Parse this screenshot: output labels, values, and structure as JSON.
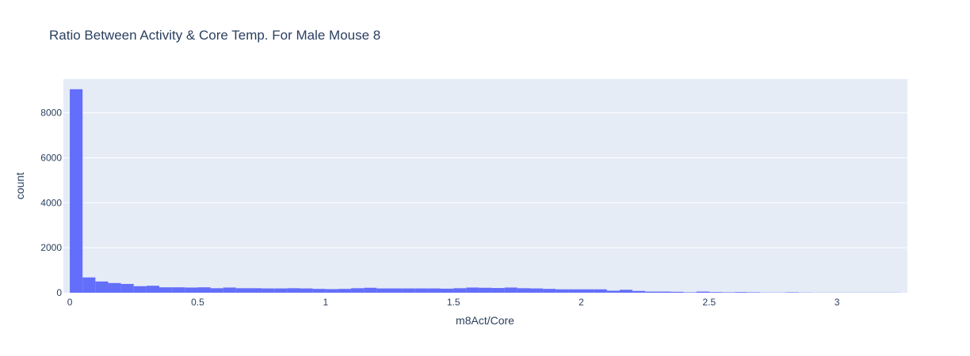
{
  "chart_data": {
    "type": "bar",
    "subtype": "histogram",
    "title": "Ratio Between Activity & Core Temp. For Male Mouse 8",
    "xlabel": "m8Act/Core",
    "ylabel": "count",
    "xlim": [
      -0.025,
      3.275
    ],
    "ylim": [
      0,
      9500
    ],
    "bin_width": 0.05,
    "x_ticks": [
      0,
      0.5,
      1,
      1.5,
      2,
      2.5,
      3
    ],
    "x_tick_labels": [
      "0",
      "0.5",
      "1",
      "1.5",
      "2",
      "2.5",
      "3"
    ],
    "y_ticks": [
      0,
      2000,
      4000,
      6000,
      8000
    ],
    "y_tick_labels": [
      "0",
      "2000",
      "4000",
      "6000",
      "8000"
    ],
    "grid": true,
    "colors": {
      "bar": "#636efa",
      "plot_bg": "#e5ecf6",
      "text": "#2a3f5f",
      "grid": "#ffffff"
    },
    "bins_start": [
      0,
      0.05,
      0.1,
      0.15,
      0.2,
      0.25,
      0.3,
      0.35,
      0.4,
      0.45,
      0.5,
      0.55,
      0.6,
      0.65,
      0.7,
      0.75,
      0.8,
      0.85,
      0.9,
      0.95,
      1.0,
      1.05,
      1.1,
      1.15,
      1.2,
      1.25,
      1.3,
      1.35,
      1.4,
      1.45,
      1.5,
      1.55,
      1.6,
      1.65,
      1.7,
      1.75,
      1.8,
      1.85,
      1.9,
      1.95,
      2.0,
      2.05,
      2.1,
      2.15,
      2.2,
      2.25,
      2.3,
      2.35,
      2.4,
      2.45,
      2.5,
      2.55,
      2.6,
      2.65,
      2.7,
      2.75,
      2.8,
      2.85,
      2.9,
      2.95,
      3.0,
      3.05,
      3.1,
      3.15,
      3.2
    ],
    "values": [
      9050,
      680,
      500,
      430,
      390,
      290,
      310,
      240,
      240,
      230,
      240,
      200,
      230,
      200,
      200,
      190,
      190,
      200,
      190,
      170,
      160,
      170,
      200,
      220,
      190,
      190,
      190,
      190,
      190,
      180,
      200,
      230,
      220,
      210,
      230,
      200,
      190,
      170,
      150,
      150,
      150,
      150,
      90,
      130,
      80,
      50,
      50,
      40,
      20,
      50,
      30,
      20,
      30,
      20,
      10,
      10,
      20,
      10,
      5,
      5,
      5,
      5,
      5,
      5,
      5
    ]
  }
}
